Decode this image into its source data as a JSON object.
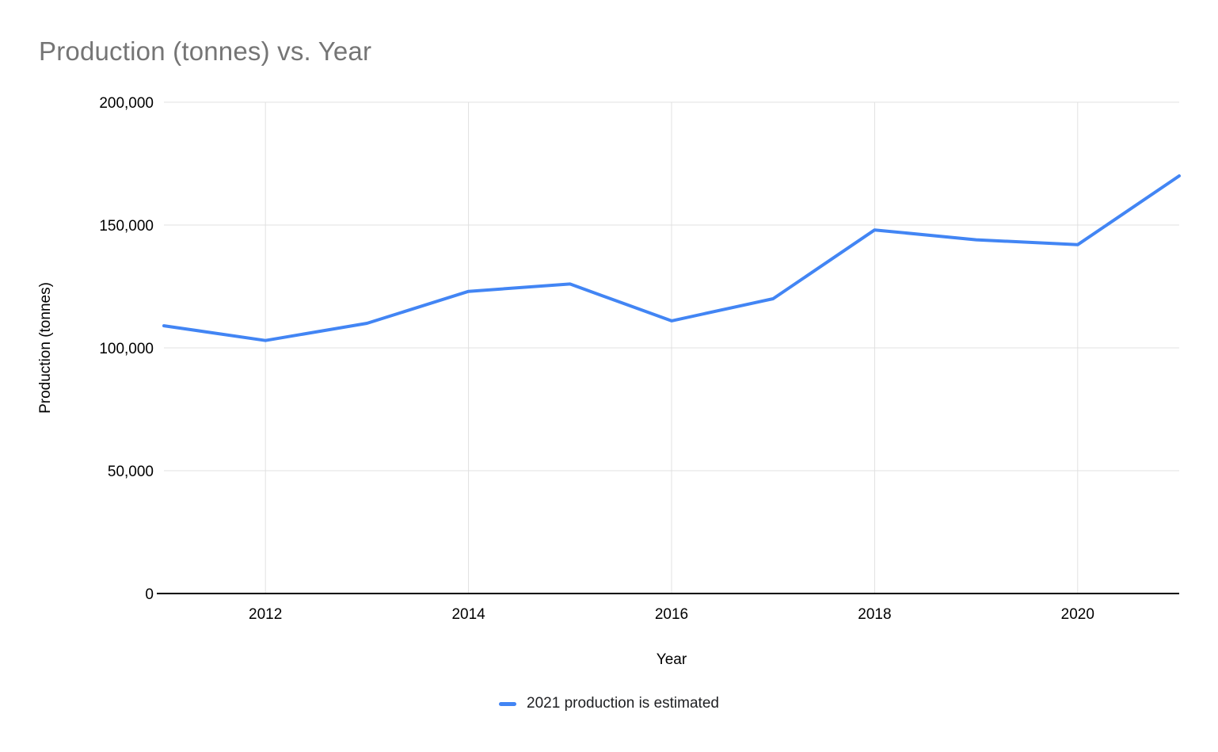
{
  "chart_data": {
    "type": "line",
    "title": "Production (tonnes) vs. Year",
    "xlabel": "Year",
    "ylabel": "Production (tonnes)",
    "series_name": "2021 production is estimated",
    "x": [
      2011,
      2012,
      2013,
      2014,
      2015,
      2016,
      2017,
      2018,
      2019,
      2020,
      2021
    ],
    "values": [
      109000,
      103000,
      110000,
      123000,
      126000,
      111000,
      120000,
      148000,
      144000,
      142000,
      170000
    ],
    "xlim": [
      2011,
      2021
    ],
    "ylim": [
      0,
      200000
    ],
    "x_ticks": [
      2012,
      2014,
      2016,
      2018,
      2020
    ],
    "y_ticks": [
      0,
      50000,
      100000,
      150000,
      200000
    ],
    "y_tick_labels": [
      "0",
      "50,000",
      "100,000",
      "150,000",
      "200,000"
    ],
    "grid": true,
    "legend_position": "bottom",
    "line_color": "#4285f4",
    "grid_color": "#e0e0e0",
    "axis_color": "#000000",
    "tick_label_color": "#000000"
  }
}
